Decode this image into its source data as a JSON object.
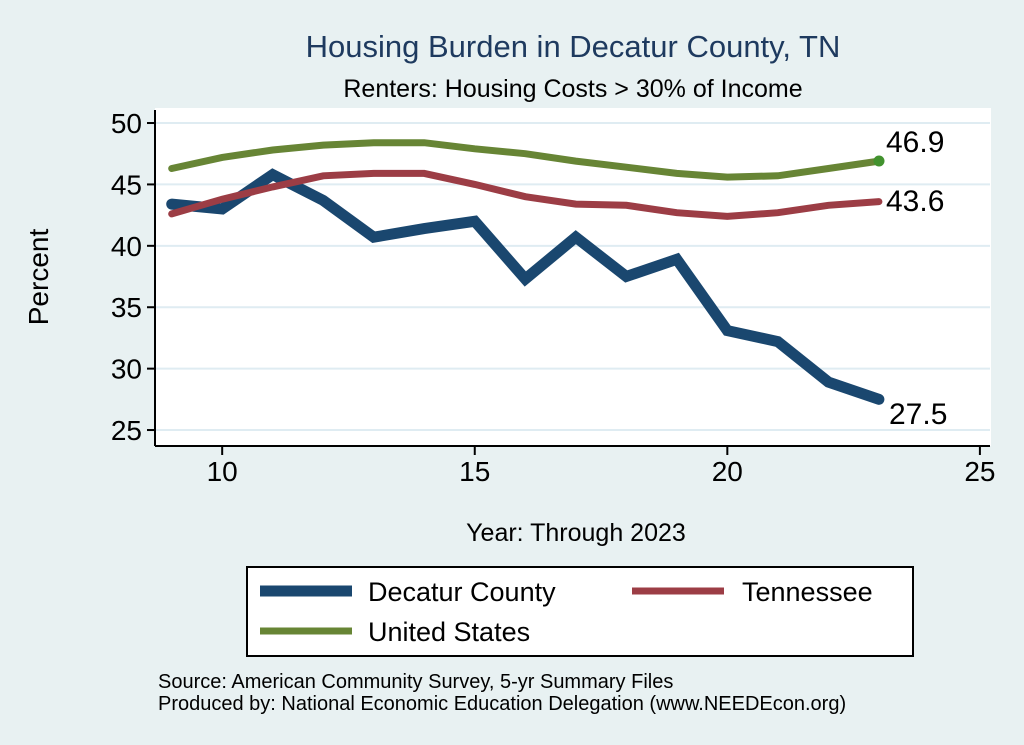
{
  "title": "Housing Burden in Decatur County, TN",
  "subtitle": "Renters: Housing Costs > 30% of Income",
  "chart_data": {
    "type": "line",
    "x": [
      2009,
      2010,
      2011,
      2012,
      2013,
      2014,
      2015,
      2016,
      2017,
      2018,
      2019,
      2020,
      2021,
      2022,
      2023
    ],
    "x_plotted_as": [
      9,
      10,
      11,
      12,
      13,
      14,
      15,
      16,
      17,
      18,
      19,
      20,
      21,
      22,
      23
    ],
    "series": [
      {
        "name": "Decatur County",
        "color": "#1a476f",
        "line_width": 11,
        "values": [
          43.4,
          43.0,
          45.8,
          43.7,
          40.7,
          41.4,
          42.0,
          37.3,
          40.7,
          37.5,
          38.9,
          33.1,
          32.2,
          28.9,
          27.5
        ],
        "end_label": "27.5"
      },
      {
        "name": "Tennessee",
        "color": "#9c3d45",
        "line_width": 7,
        "values": [
          42.6,
          43.8,
          44.8,
          45.7,
          45.9,
          45.9,
          45.0,
          44.0,
          43.4,
          43.3,
          42.7,
          42.4,
          42.7,
          43.3,
          43.6
        ],
        "end_label": "43.6"
      },
      {
        "name": "United States",
        "color": "#678535",
        "line_width": 7,
        "values": [
          46.3,
          47.2,
          47.8,
          48.2,
          48.4,
          48.4,
          47.9,
          47.5,
          46.9,
          46.4,
          45.9,
          45.6,
          45.7,
          46.3,
          46.9
        ],
        "end_label": "46.9",
        "end_marker": true,
        "end_marker_color": "#42922e"
      }
    ],
    "xlabel": "Year: Through 2023",
    "ylabel": "Percent",
    "xticks": [
      10,
      15,
      20,
      25
    ],
    "yticks": [
      25,
      30,
      35,
      40,
      45,
      50
    ],
    "xlim": [
      8.67,
      25.2
    ],
    "ylim": [
      23.7,
      51.06
    ],
    "grid": "horizontal",
    "legend_position": "bottom"
  },
  "colors": {
    "background": "#e8f1f2",
    "plot_background": "#ffffff",
    "gridline": "#dfecf2",
    "axis": "#000000",
    "title_text": "#1e3a5f"
  },
  "footer": {
    "line1": "Source: American Community Survey, 5-yr Summary Files",
    "line2": "Produced by: National Economic Education Delegation (www.NEEDEcon.org)"
  }
}
